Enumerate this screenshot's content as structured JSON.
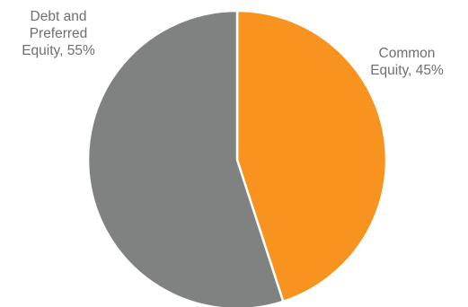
{
  "chart_data": {
    "type": "pie",
    "title": "",
    "slices": [
      {
        "label": "Common Equity",
        "value": 45,
        "value_text": "45%",
        "color": "#f7931e"
      },
      {
        "label": "Debt and Preferred Equity",
        "value": 55,
        "value_text": "55%",
        "color": "#808282"
      }
    ],
    "start_angle": "12 o'clock",
    "direction": "clockwise",
    "slice_border_color": "#ffffff",
    "label_color": "#6f6f6f",
    "legend": "none"
  },
  "labels": {
    "debt": {
      "line1": "Debt and",
      "line2": "Preferred",
      "line3": "Equity, 55%"
    },
    "common": {
      "line1": "Common",
      "line2": "Equity, 45%"
    }
  }
}
